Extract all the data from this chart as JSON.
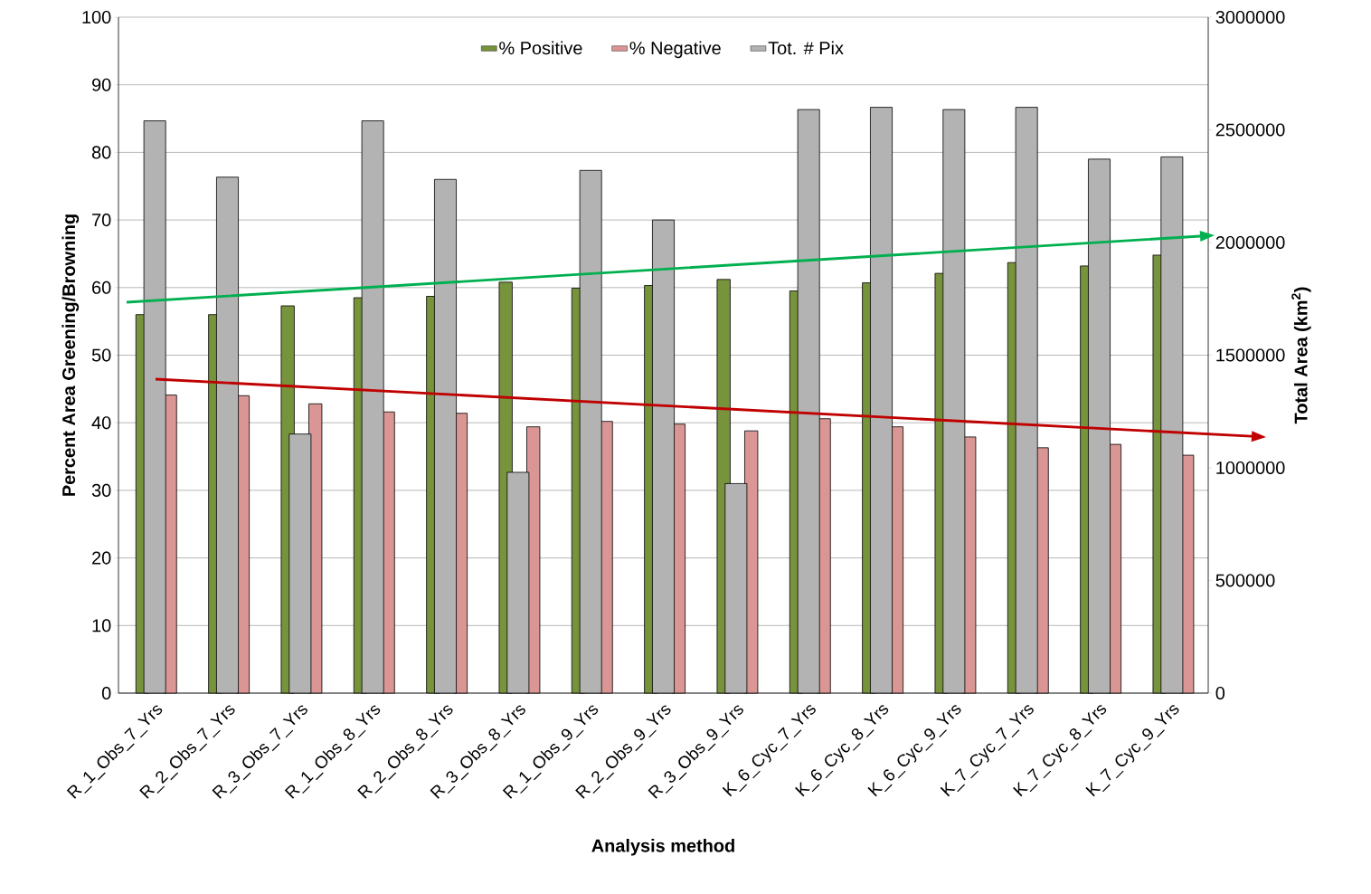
{
  "chart_data": {
    "type": "bar",
    "xlabel": "Analysis method",
    "ylabel": "Percent Area Greening/Browning",
    "y2label": "Total Area (km$^{2}$)",
    "categories": [
      "R_1_Obs_7_Yrs",
      "R_2_Obs_7_Yrs",
      "R_3_Obs_7_Yrs",
      "R_1_Obs_8_Yrs",
      "R_2_Obs_8_Yrs",
      "R_3_Obs_8_Yrs",
      "R_1_Obs_9_Yrs",
      "R_2_Obs_9_Yrs",
      "R_3_Obs_9_Yrs",
      "K_6_Cyc_7_Yrs",
      "K_6_Cyc_8_Yrs",
      "K_6_Cyc_9_Yrs",
      "K_7_Cyc_7_Yrs",
      "K_7_Cyc_8_Yrs",
      "K_7_Cyc_9_Yrs"
    ],
    "series": [
      {
        "name": "% Positive",
        "color": "#77933c",
        "values": [
          56.0,
          56.0,
          57.3,
          58.5,
          58.7,
          60.8,
          59.9,
          60.3,
          61.2,
          59.5,
          60.7,
          62.1,
          63.7,
          63.2,
          64.8
        ]
      },
      {
        "name": "% Negative",
        "color": "#d99694",
        "values": [
          44.1,
          44.0,
          42.8,
          41.6,
          41.4,
          39.4,
          40.2,
          39.8,
          38.8,
          40.6,
          39.4,
          37.9,
          36.3,
          36.8,
          35.2
        ]
      },
      {
        "name": "Tot. # Pix",
        "color": "#b3b3b3",
        "axis": "y2",
        "values": [
          2540000,
          2290000,
          1150000,
          2540000,
          2280000,
          980000,
          2320000,
          2100000,
          930000,
          2590000,
          2600000,
          2590000,
          2600000,
          2370000,
          2380000
        ]
      }
    ],
    "ylim": [
      0,
      100
    ],
    "yticks": [
      0,
      10,
      20,
      30,
      40,
      50,
      60,
      70,
      80,
      90,
      100
    ],
    "y2lim": [
      0,
      3000000
    ],
    "y2ticks": [
      0,
      500000,
      1000000,
      1500000,
      2000000,
      2500000,
      3000000
    ],
    "grid": "y",
    "legend": "top"
  }
}
